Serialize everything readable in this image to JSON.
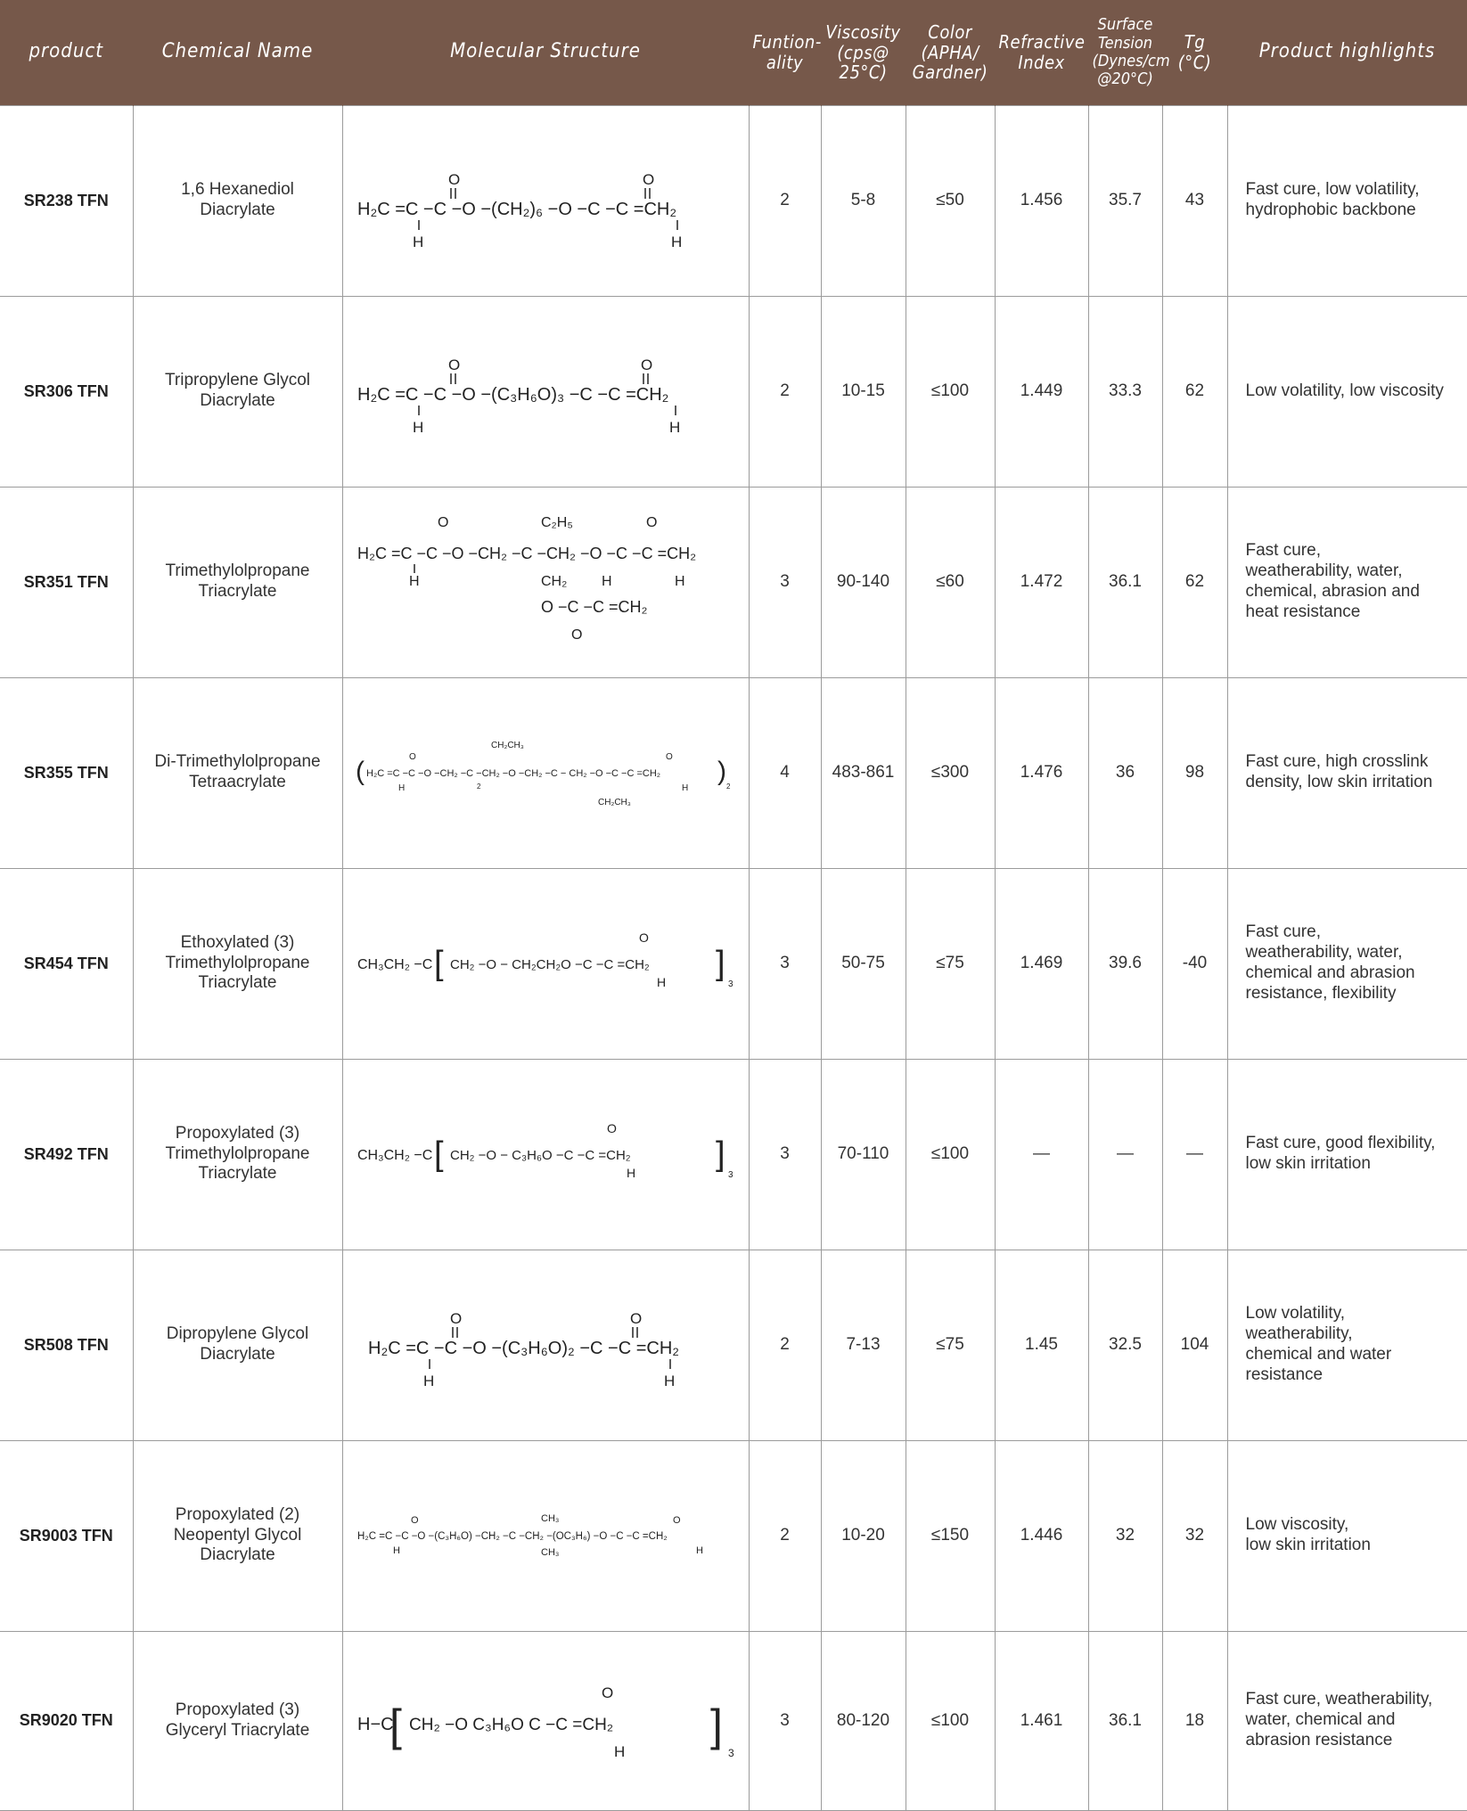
{
  "header": {
    "product": "product",
    "chemical_name": "Chemical Name",
    "molecular_structure": "Molecular Structure",
    "functionality": "Funtion-\nality",
    "viscosity": "Viscosity\n(cps@\n25°C)",
    "color": "Color\n(APHA/\nGardner)",
    "refractive_index": "Refractive\nIndex",
    "surface_tension": "Surface\nTension\n(Dynes/cm\n@20°C)",
    "tg": "Tg\n(°C)",
    "highlights": "Product highlights"
  },
  "rows": [
    {
      "product": "SR238 TFN",
      "chemical_name": "1,6 Hexanediol\nDiacrylate",
      "structure": {
        "line": "H₂C =C −C −O −(CH₂)₆  −O −C −C =CH₂",
        "top": [
          "O",
          "O"
        ],
        "bottom": [
          "H",
          "H"
        ]
      },
      "functionality": "2",
      "viscosity": "5-8",
      "color": "≤50",
      "refractive_index": "1.456",
      "surface_tension": "35.7",
      "tg": "43",
      "highlights": "Fast cure, low volatility,\nhydrophobic backbone"
    },
    {
      "product": "SR306 TFN",
      "chemical_name": "Tripropylene Glycol\nDiacrylate",
      "structure": {
        "line": "H₂C =C −C −O −(C₃H₆O)₃  −C −C =CH₂",
        "top": [
          "O",
          "O"
        ],
        "bottom": [
          "H",
          "H"
        ]
      },
      "functionality": "2",
      "viscosity": "10-15",
      "color": "≤100",
      "refractive_index": "1.449",
      "surface_tension": "33.3",
      "tg": "62",
      "highlights": "Low volatility, low viscosity"
    },
    {
      "product": "SR351 TFN",
      "chemical_name": "Trimethylolpropane\nTriacrylate",
      "structure": {
        "line": "H₂C =C −C −O −CH₂ −C −CH₂ −O −C −C =CH₂",
        "top": [
          "O",
          "C₂H₅",
          "O"
        ],
        "bottom": [
          "H",
          "CH₂",
          "H",
          "H"
        ],
        "branch": "O −C −C =CH₂",
        "branch_bottom": "O"
      },
      "functionality": "3",
      "viscosity": "90-140",
      "color": "≤60",
      "refractive_index": "1.472",
      "surface_tension": "36.1",
      "tg": "62",
      "highlights": "Fast cure,\nweatherability, water,\nchemical, abrasion and\nheat resistance"
    },
    {
      "product": "SR355 TFN",
      "chemical_name": "Di-Trimethylolpropane\nTetraacrylate",
      "structure": {
        "line": "H₂C =C −C −O −CH₂  −C −CH₂ −O −CH₂ −C −  CH₂ −O −C −C =CH₂",
        "top": [
          "O",
          "CH₂CH₃",
          "O"
        ],
        "bottom": [
          "H",
          "CH₂CH₃",
          "H"
        ],
        "subscript": [
          "2",
          "2"
        ]
      },
      "functionality": "4",
      "viscosity": "483-861",
      "color": "≤300",
      "refractive_index": "1.476",
      "surface_tension": "36",
      "tg": "98",
      "highlights": "Fast cure, high crosslink\ndensity, low skin irritation"
    },
    {
      "product": "SR454 TFN",
      "chemical_name": "Ethoxylated (3)\nTrimethylolpropane\nTriacrylate",
      "structure": {
        "prefix": "CH₃CH₂ −C",
        "inner": "CH₂ −O −  CH₂CH₂O   −C −C =CH₂",
        "top": [
          "O"
        ],
        "bottom": [
          "H"
        ],
        "subscript": "3"
      },
      "functionality": "3",
      "viscosity": "50-75",
      "color": "≤75",
      "refractive_index": "1.469",
      "surface_tension": "39.6",
      "tg": "-40",
      "highlights": "Fast cure,\nweatherability, water,\nchemical and abrasion\nresistance, flexibility"
    },
    {
      "product": "SR492 TFN",
      "chemical_name": "Propoxylated (3)\nTrimethylolpropane\nTriacrylate",
      "structure": {
        "prefix": "CH₃CH₂ −C",
        "inner": "CH₂ −O −  C₃H₆O   −C −C =CH₂",
        "top": [
          "O"
        ],
        "bottom": [
          "H"
        ],
        "subscript": "3"
      },
      "functionality": "3",
      "viscosity": "70-110",
      "color": "≤100",
      "refractive_index": "—",
      "surface_tension": "—",
      "tg": "—",
      "highlights": "Fast cure, good flexibility,\nlow skin irritation"
    },
    {
      "product": "SR508 TFN",
      "chemical_name": "Dipropylene Glycol\nDiacrylate",
      "structure": {
        "line": "H₂C =C −C −O −(C₃H₆O)₂  −C −C =CH₂",
        "top": [
          "O",
          "O"
        ],
        "bottom": [
          "H",
          "H"
        ]
      },
      "functionality": "2",
      "viscosity": "7-13",
      "color": "≤75",
      "refractive_index": "1.45",
      "surface_tension": "32.5",
      "tg": "104",
      "highlights": "Low volatility,\nweatherability,\nchemical and water\nresistance"
    },
    {
      "product": "SR9003 TFN",
      "chemical_name": "Propoxylated (2)\nNeopentyl Glycol\nDiacrylate",
      "structure": {
        "line": "H₂C =C −C −O −(C₃H₆O) −CH₂ −C −CH₂ −(OC₃H₆) −O −C −C =CH₂",
        "top": [
          "O",
          "CH₃",
          "O"
        ],
        "bottom": [
          "H",
          "CH₃",
          "H"
        ]
      },
      "functionality": "2",
      "viscosity": "10-20",
      "color": "≤150",
      "refractive_index": "1.446",
      "surface_tension": "32",
      "tg": "32",
      "highlights": "Low viscosity,\nlow skin irritation"
    },
    {
      "product": "SR9020 TFN",
      "chemical_name": "Propoxylated (3)\nGlyceryl Triacrylate",
      "structure": {
        "prefix": "H−C",
        "inner": "CH₂ −O  C₃H₆O   C −C =CH₂",
        "top": [
          "O"
        ],
        "bottom": [
          "H"
        ],
        "subscript": "3"
      },
      "functionality": "3",
      "viscosity": "80-120",
      "color": "≤100",
      "refractive_index": "1.461",
      "surface_tension": "36.1",
      "tg": "18",
      "highlights": "Fast cure, weatherability,\nwater, chemical and\nabrasion resistance"
    }
  ]
}
